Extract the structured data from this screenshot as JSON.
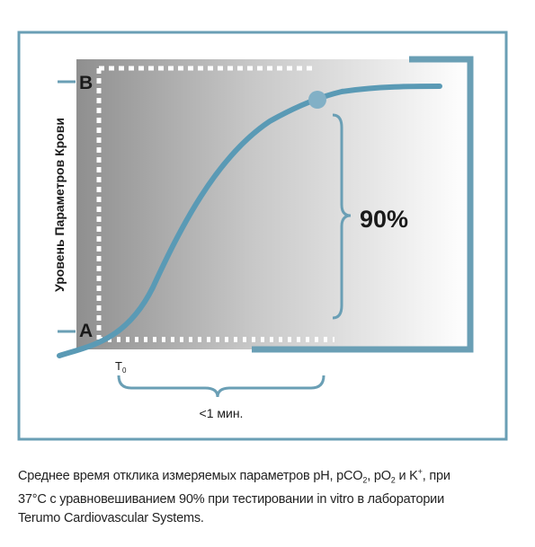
{
  "diagram": {
    "y_axis_label": "Уровень Параметров Крови",
    "level_b": "B",
    "level_a": "A",
    "t0_base": "T",
    "t0_sub": "0",
    "percent_label": "90%",
    "time_label": "<1 мин.",
    "colors": {
      "frame": "#6a9fb5",
      "curve": "#5a9ab5",
      "dot": "#82b0c6",
      "shade_dark": "#8f8f8f",
      "text": "#1a1a1a"
    }
  },
  "caption": {
    "line1_pre": "Среднее время отклика измеряемых параметров pH, pCO",
    "co2_sub": "2",
    "line1_mid": ", pO",
    "o2_sub": "2",
    "line1_k": " и K",
    "k_sup": "+",
    "line1_post": ", при",
    "line2": "37°C с уравновешиванием 90% при тестировании in vitro в лаборатории",
    "line3": "Terumo Cardiovascular Systems."
  }
}
